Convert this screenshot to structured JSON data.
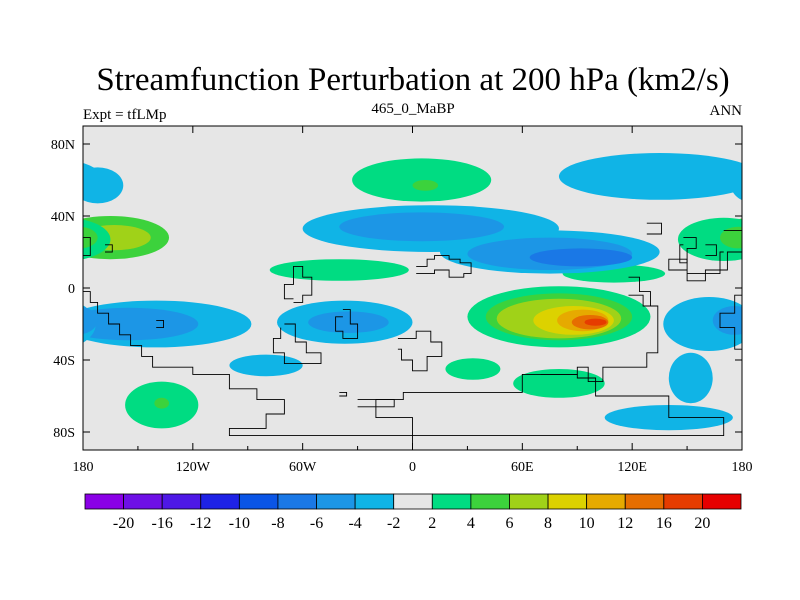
{
  "chart_data": {
    "type": "heatmap",
    "title": "Streamfunction Perturbation at 200 hPa (km2/s)",
    "left_string": "Expt = tfLMp",
    "center_string": "465_0_MaBP",
    "right_string": "ANN",
    "x_ticks": [
      {
        "value": -180,
        "label": "180"
      },
      {
        "value": -120,
        "label": "120W"
      },
      {
        "value": -60,
        "label": "60W"
      },
      {
        "value": 0,
        "label": "0"
      },
      {
        "value": 60,
        "label": "60E"
      },
      {
        "value": 120,
        "label": "120E"
      },
      {
        "value": 180,
        "label": "180"
      }
    ],
    "y_ticks": [
      {
        "value": 80,
        "label": "80N"
      },
      {
        "value": 40,
        "label": "40N"
      },
      {
        "value": 0,
        "label": "0"
      },
      {
        "value": -40,
        "label": "40S"
      },
      {
        "value": -80,
        "label": "80S"
      }
    ],
    "xlim": [
      -180,
      180
    ],
    "ylim": [
      -90,
      90
    ],
    "colorbar": {
      "labels": [
        "-20",
        "-16",
        "-12",
        "-10",
        "-8",
        "-6",
        "-4",
        "-2",
        "2",
        "4",
        "6",
        "8",
        "10",
        "12",
        "16",
        "20"
      ],
      "colors": [
        "#8a00e6",
        "#6e10e6",
        "#4e18e6",
        "#1e22e6",
        "#0a55e6",
        "#1a78e6",
        "#1c96e6",
        "#10b4e6",
        "#e6e6e6",
        "#00dc82",
        "#3cd23c",
        "#a0d218",
        "#dcd200",
        "#e6aa00",
        "#e66e00",
        "#e63c00",
        "#e60000"
      ]
    },
    "features": [
      {
        "name": "pos-n-pacific",
        "lon": -165,
        "lat": 28,
        "rx": 32,
        "ry": 12,
        "level": 10
      },
      {
        "name": "pos-n-pacific-core",
        "lon": -163,
        "lat": 28,
        "rx": 20,
        "ry": 7,
        "level": 11
      },
      {
        "name": "pos-n-atlantic",
        "lon": 5,
        "lat": 60,
        "rx": 38,
        "ry": 12,
        "level": 9
      },
      {
        "name": "pos-n-atlantic-core",
        "lon": 7,
        "lat": 57,
        "rx": 7,
        "ry": 3,
        "level": 10
      },
      {
        "name": "pos-s-asia",
        "lon": 110,
        "lat": 8,
        "rx": 28,
        "ry": 5,
        "level": 9
      },
      {
        "name": "pos-e-asia",
        "lon": 170,
        "lat": 27,
        "rx": 25,
        "ry": 12,
        "level": 9
      },
      {
        "name": "pos-e-asia-core",
        "lon": 178,
        "lat": 28,
        "rx": 10,
        "ry": 6,
        "level": 10
      },
      {
        "name": "pos-trop-atl",
        "lon": -40,
        "lat": 10,
        "rx": 38,
        "ry": 6,
        "level": 9
      },
      {
        "name": "pos-indian",
        "lon": 80,
        "lat": -16,
        "rx": 50,
        "ry": 17,
        "level": 9
      },
      {
        "name": "pos-indian-2",
        "lon": 80,
        "lat": -16,
        "rx": 40,
        "ry": 13,
        "level": 10
      },
      {
        "name": "pos-indian-3",
        "lon": 80,
        "lat": -17,
        "rx": 34,
        "ry": 11,
        "level": 11
      },
      {
        "name": "pos-indian-4",
        "lon": 88,
        "lat": -18,
        "rx": 22,
        "ry": 8,
        "level": 12
      },
      {
        "name": "pos-indian-5",
        "lon": 93,
        "lat": -18,
        "rx": 14,
        "ry": 6,
        "level": 13
      },
      {
        "name": "pos-indian-6",
        "lon": 97,
        "lat": -19,
        "rx": 10,
        "ry": 4,
        "level": 14
      },
      {
        "name": "pos-indian-7",
        "lon": 100,
        "lat": -19,
        "rx": 6,
        "ry": 2,
        "level": 15
      },
      {
        "name": "pos-s-atl-low",
        "lon": 33,
        "lat": -45,
        "rx": 15,
        "ry": 6,
        "level": 9
      },
      {
        "name": "pos-s-indian",
        "lon": 80,
        "lat": -53,
        "rx": 25,
        "ry": 8,
        "level": 9
      },
      {
        "name": "pos-s-pacific",
        "lon": -137,
        "lat": -65,
        "rx": 20,
        "ry": 13,
        "level": 9
      },
      {
        "name": "pos-s-pacific-core",
        "lon": -137,
        "lat": -64,
        "rx": 4,
        "ry": 3,
        "level": 10
      },
      {
        "name": "neg-n-pacific",
        "lon": -172,
        "lat": 57,
        "rx": 14,
        "ry": 10,
        "level": 7
      },
      {
        "name": "neg-n-atlantic",
        "lon": 135,
        "lat": 62,
        "rx": 55,
        "ry": 13,
        "level": 7
      },
      {
        "name": "neg-midlat",
        "lon": 10,
        "lat": 33,
        "rx": 70,
        "ry": 13,
        "level": 7
      },
      {
        "name": "neg-midlat-b",
        "lon": 75,
        "lat": 20,
        "rx": 60,
        "ry": 12,
        "level": 7
      },
      {
        "name": "neg-midlat-2",
        "lon": 5,
        "lat": 34,
        "rx": 45,
        "ry": 8,
        "level": 6
      },
      {
        "name": "neg-midlat-3",
        "lon": 75,
        "lat": 19,
        "rx": 45,
        "ry": 9,
        "level": 6
      },
      {
        "name": "neg-midlat-4",
        "lon": 92,
        "lat": 17,
        "rx": 28,
        "ry": 5,
        "level": 5
      },
      {
        "name": "neg-s-pacific",
        "lon": -140,
        "lat": -20,
        "rx": 52,
        "ry": 13,
        "level": 7
      },
      {
        "name": "neg-s-pacific-b",
        "lon": -80,
        "lat": -43,
        "rx": 20,
        "ry": 6,
        "level": 7
      },
      {
        "name": "neg-s-pacific-2",
        "lon": -155,
        "lat": -20,
        "rx": 38,
        "ry": 9,
        "level": 6
      },
      {
        "name": "neg-s-america",
        "lon": -37,
        "lat": -19,
        "rx": 37,
        "ry": 12,
        "level": 7
      },
      {
        "name": "neg-s-america-2",
        "lon": -35,
        "lat": -19,
        "rx": 22,
        "ry": 6,
        "level": 6
      },
      {
        "name": "neg-e-pacific",
        "lon": 162,
        "lat": -20,
        "rx": 25,
        "ry": 15,
        "level": 7
      },
      {
        "name": "neg-e-pacific-2",
        "lon": 176,
        "lat": -18,
        "rx": 12,
        "ry": 8,
        "level": 6
      },
      {
        "name": "neg-s-tail",
        "lon": 152,
        "lat": -50,
        "rx": 12,
        "ry": 14,
        "level": 7
      },
      {
        "name": "neg-s-tail-2",
        "lon": 140,
        "lat": -72,
        "rx": 35,
        "ry": 7,
        "level": 7
      }
    ]
  }
}
